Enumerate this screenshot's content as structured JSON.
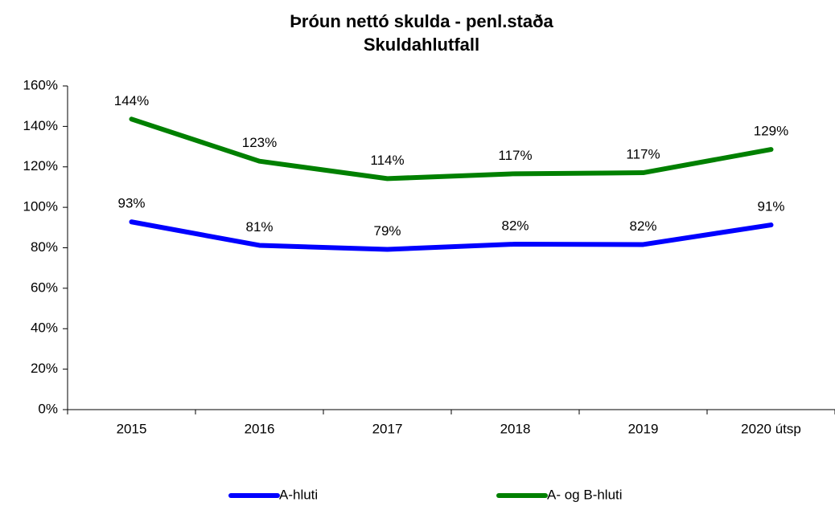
{
  "chart_data": {
    "type": "line",
    "title": [
      "Þróun nettó skulda - penl.staða",
      "Skuldahlutfall"
    ],
    "categories": [
      "2015",
      "2016",
      "2017",
      "2018",
      "2019",
      "2020 útsp"
    ],
    "series": [
      {
        "name": "A-hluti",
        "color": "#0000ff",
        "values": [
          92.8,
          81.2,
          79.2,
          81.8,
          81.6,
          91.3
        ],
        "value_labels": [
          "93%",
          "81%",
          "79%",
          "82%",
          "82%",
          "91%"
        ]
      },
      {
        "name": "A- og B-hluti",
        "color": "#008000",
        "values": [
          143.6,
          122.8,
          114.2,
          116.6,
          117.1,
          128.6
        ],
        "value_labels": [
          "144%",
          "123%",
          "114%",
          "117%",
          "117%",
          "129%"
        ]
      }
    ],
    "ylim": [
      0,
      160
    ],
    "yticks": [
      {
        "value": 0,
        "label": "0%"
      },
      {
        "value": 20,
        "label": "20%"
      },
      {
        "value": 40,
        "label": "40%"
      },
      {
        "value": 60,
        "label": "60%"
      },
      {
        "value": 80,
        "label": "80%"
      },
      {
        "value": 100,
        "label": "100%"
      },
      {
        "value": 120,
        "label": "120%"
      },
      {
        "value": 140,
        "label": "140%"
      },
      {
        "value": 160,
        "label": "160%"
      }
    ],
    "grid": false,
    "legend": "bottom"
  }
}
